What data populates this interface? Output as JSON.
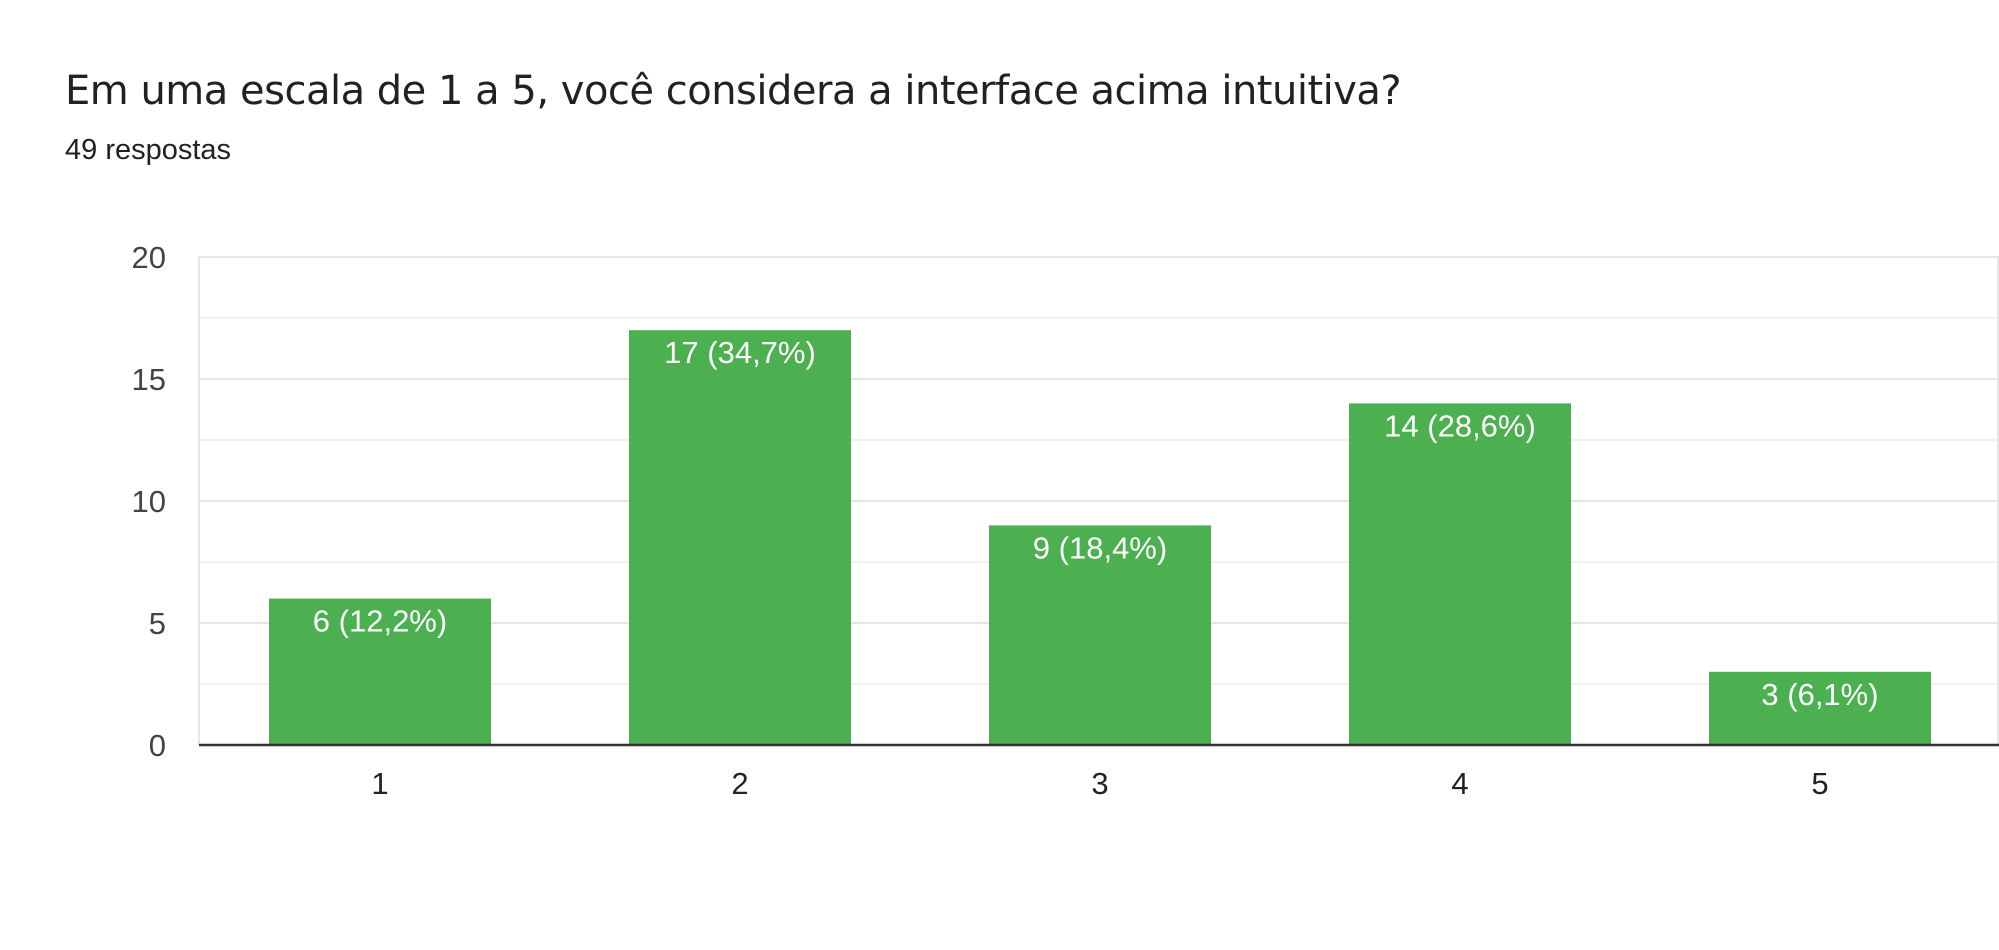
{
  "header": {
    "title": "Em uma escala de 1 a 5, você considera a interface acima intuitiva?",
    "response_count": "49 respostas"
  },
  "colors": {
    "bar": "#4caf50",
    "label": "#ffffff"
  },
  "chart_data": {
    "type": "bar",
    "categories": [
      "1",
      "2",
      "3",
      "4",
      "5"
    ],
    "values": [
      6,
      17,
      9,
      14,
      3
    ],
    "data_labels": [
      "6 (12,2%)",
      "17 (34,7%)",
      "9 (18,4%)",
      "14 (28,6%)",
      "3 (6,1%)"
    ],
    "ylim": [
      0,
      20
    ],
    "yticks": [
      0,
      5,
      10,
      15,
      20
    ],
    "grid": true,
    "legend": "none"
  }
}
